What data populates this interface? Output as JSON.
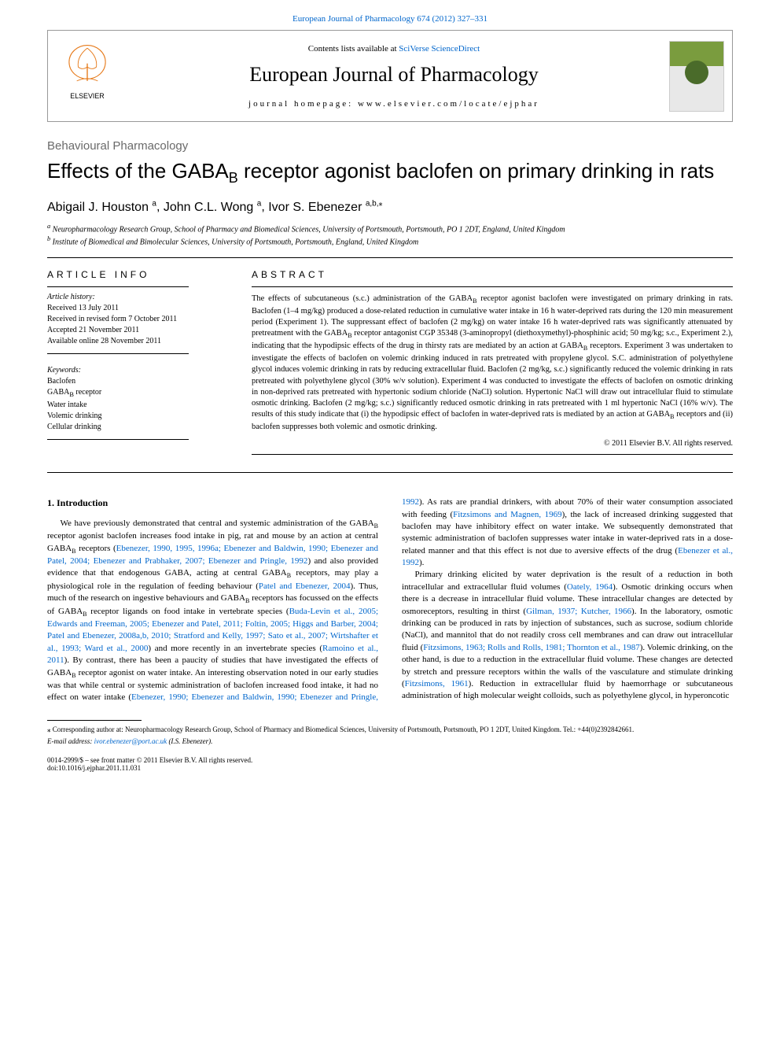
{
  "header": {
    "journal_link_text": "European Journal of Pharmacology 674 (2012) 327–331",
    "contents_prefix": "Contents lists available at ",
    "contents_link": "SciVerse ScienceDirect",
    "journal_name": "European Journal of Pharmacology",
    "homepage_prefix": "journal homepage: ",
    "homepage_url": "www.elsevier.com/locate/ejphar"
  },
  "article": {
    "section_label": "Behavioural Pharmacology",
    "title_pre": "Effects of the GABA",
    "title_sub": "B",
    "title_post": " receptor agonist baclofen on primary drinking in rats",
    "authors": [
      {
        "name": "Abigail J. Houston",
        "aff": "a"
      },
      {
        "name": "John C.L. Wong",
        "aff": "a"
      },
      {
        "name": "Ivor S. Ebenezer",
        "aff": "a,b,",
        "corr": true
      }
    ],
    "affiliations": [
      {
        "marker": "a",
        "text": "Neuropharmacology Research Group, School of Pharmacy and Biomedical Sciences, University of Portsmouth, Portsmouth, PO 1 2DT, England, United Kingdom"
      },
      {
        "marker": "b",
        "text": "Institute of Biomedical and Bimolecular Sciences, University of Portsmouth, Portsmouth, England, United Kingdom"
      }
    ]
  },
  "info": {
    "heading": "ARTICLE INFO",
    "history_label": "Article history:",
    "history": [
      "Received 13 July 2011",
      "Received in revised form 7 October 2011",
      "Accepted 21 November 2011",
      "Available online 28 November 2011"
    ],
    "keywords_label": "Keywords:",
    "keywords": [
      "Baclofen",
      "GABA_B receptor",
      "Water intake",
      "Volemic drinking",
      "Cellular drinking"
    ]
  },
  "abstract": {
    "heading": "ABSTRACT",
    "text": "The effects of subcutaneous (s.c.) administration of the GABA_B receptor agonist baclofen were investigated on primary drinking in rats. Baclofen (1–4 mg/kg) produced a dose-related reduction in cumulative water intake in 16 h water-deprived rats during the 120 min measurement period (Experiment 1). The suppressant effect of baclofen (2 mg/kg) on water intake 16 h water-deprived rats was significantly attenuated by pretreatment with the GABA_B receptor antagonist CGP 35348 (3-aminopropyl (diethoxymethyl)-phosphinic acid; 50 mg/kg; s.c., Experiment 2.), indicating that the hypodipsic effects of the drug in thirsty rats are mediated by an action at GABA_B receptors. Experiment 3 was undertaken to investigate the effects of baclofen on volemic drinking induced in rats pretreated with propylene glycol. S.C. administration of polyethylene glycol induces volemic drinking in rats by reducing extracellular fluid. Baclofen (2 mg/kg, s.c.) significantly reduced the volemic drinking in rats pretreated with polyethylene glycol (30% w/v solution). Experiment 4 was conducted to investigate the effects of baclofen on osmotic drinking in non-deprived rats pretreated with hypertonic sodium chloride (NaCl) solution. Hypertonic NaCl will draw out intracellular fluid to stimulate osmotic drinking. Baclofen (2 mg/kg; s.c.) significantly reduced osmotic drinking in rats pretreated with 1 ml hypertonic NaCl (16% w/v). The results of this study indicate that (i) the hypodipsic effect of baclofen in water-deprived rats is mediated by an action at GABA_B receptors and (ii) baclofen suppresses both volemic and osmotic drinking.",
    "copyright": "© 2011 Elsevier B.V. All rights reserved."
  },
  "body": {
    "heading": "1. Introduction",
    "para1_pre": "We have previously demonstrated that central and systemic administration of the GABA",
    "para1_mid": " receptor agonist baclofen increases food intake in pig, rat and mouse by an action at central GABA",
    "para1_post": " receptors (",
    "para1_refs1": "Ebenezer, 1990, 1995, 1996a; Ebenezer and Baldwin, 1990; Ebenezer and Patel, 2004; Ebenezer and Prabhaker, 2007; Ebenezer and Pringle, 1992",
    "para1_mid2": ") and also provided evidence that that endogenous GABA, acting at central GABA",
    "para1_mid3": " receptors, may play a physiological role in the regulation of feeding behaviour (",
    "para1_refs2": "Patel and Ebenezer, 2004",
    "para1_mid4": "). Thus, much of the research on ingestive behaviours and GABA",
    "para1_mid5": " receptors has focussed on the effects of GABA",
    "para1_mid6": " receptor ligands on food intake in vertebrate species (",
    "para1_refs3": "Buda-Levin et al., 2005; Edwards and Freeman, 2005; Ebenezer and Patel, 2011; Foltin, 2005; Higgs and Barber, 2004; Patel and Ebenezer, 2008a,b, 2010; Stratford and Kelly, 1997; Sato et al., 2007; Wirtshafter et al., 1993; Ward et al., 2000",
    "para1_mid7": ") and more recently in an invertebrate species (",
    "para1_refs4": "Ramoino et al., 2011",
    "para1_mid8": "). By contrast, there has been a paucity of studies that have investigated the effects of GABA",
    "para1_end": " receptor agonist on water intake. An interesting observation noted in our early studies was that",
    "para1b_pre": "while central or systemic administration of baclofen increased food intake, it had no effect on water intake (",
    "para1b_refs1": "Ebenezer, 1990; Ebenezer and Baldwin, 1990; Ebenezer and Pringle, 1992",
    "para1b_mid": "). As rats are prandial drinkers, with about 70% of their water consumption associated with feeding (",
    "para1b_refs2": "Fitzsimons and Magnen, 1969",
    "para1b_mid2": "), the lack of increased drinking suggested that baclofen may have inhibitory effect on water intake. We subsequently demonstrated that systemic administration of baclofen suppresses water intake in water-deprived rats in a dose-related manner and that this effect is not due to aversive effects of the drug (",
    "para1b_refs3": "Ebenezer et al., 1992",
    "para1b_end": ").",
    "para2_pre": "Primary drinking elicited by water deprivation is the result of a reduction in both intracellular and extracellular fluid volumes (",
    "para2_refs1": "Oately, 1964",
    "para2_mid": "). Osmotic drinking occurs when there is a decrease in intracellular fluid volume. These intracellular changes are detected by osmoreceptors, resulting in thirst (",
    "para2_refs2": "Gilman, 1937; Kutcher, 1966",
    "para2_mid2": "). In the laboratory, osmotic drinking can be produced in rats by injection of substances, such as sucrose, sodium chloride (NaCl), and mannitol that do not readily cross cell membranes and can draw out intracellular fluid (",
    "para2_refs3": "Fitzsimons, 1963; Rolls and Rolls, 1981; Thornton et al., 1987",
    "para2_mid3": "). Volemic drinking, on the other hand, is due to a reduction in the extracellular fluid volume. These changes are detected by stretch and pressure receptors within the walls of the vasculature and stimulate drinking (",
    "para2_refs4": "Fitzsimons, 1961",
    "para2_end": "). Reduction in extracellular fluid by haemorrhage or subcutaneous administration of high molecular weight colloids, such as polyethylene glycol, in hyperoncotic"
  },
  "footer": {
    "corresp_marker": "⁎",
    "corresp_text": "Corresponding author at: Neuropharmacology Research Group, School of Pharmacy and Biomedical Sciences, University of Portsmouth, Portsmouth, PO 1 2DT, United Kingdom. Tel.: +44(0)2392842661.",
    "email_label": "E-mail address:",
    "email": "ivor.ebenezer@port.ac.uk",
    "email_suffix": "(I.S. Ebenezer).",
    "issn_line": "0014-2999/$ – see front matter © 2011 Elsevier B.V. All rights reserved.",
    "doi_line": "doi:10.1016/j.ejphar.2011.11.031"
  },
  "colors": {
    "link": "#0066cc",
    "text": "#000000",
    "section_label": "#6a6a6a",
    "cover_green": "#7a9c3e"
  }
}
